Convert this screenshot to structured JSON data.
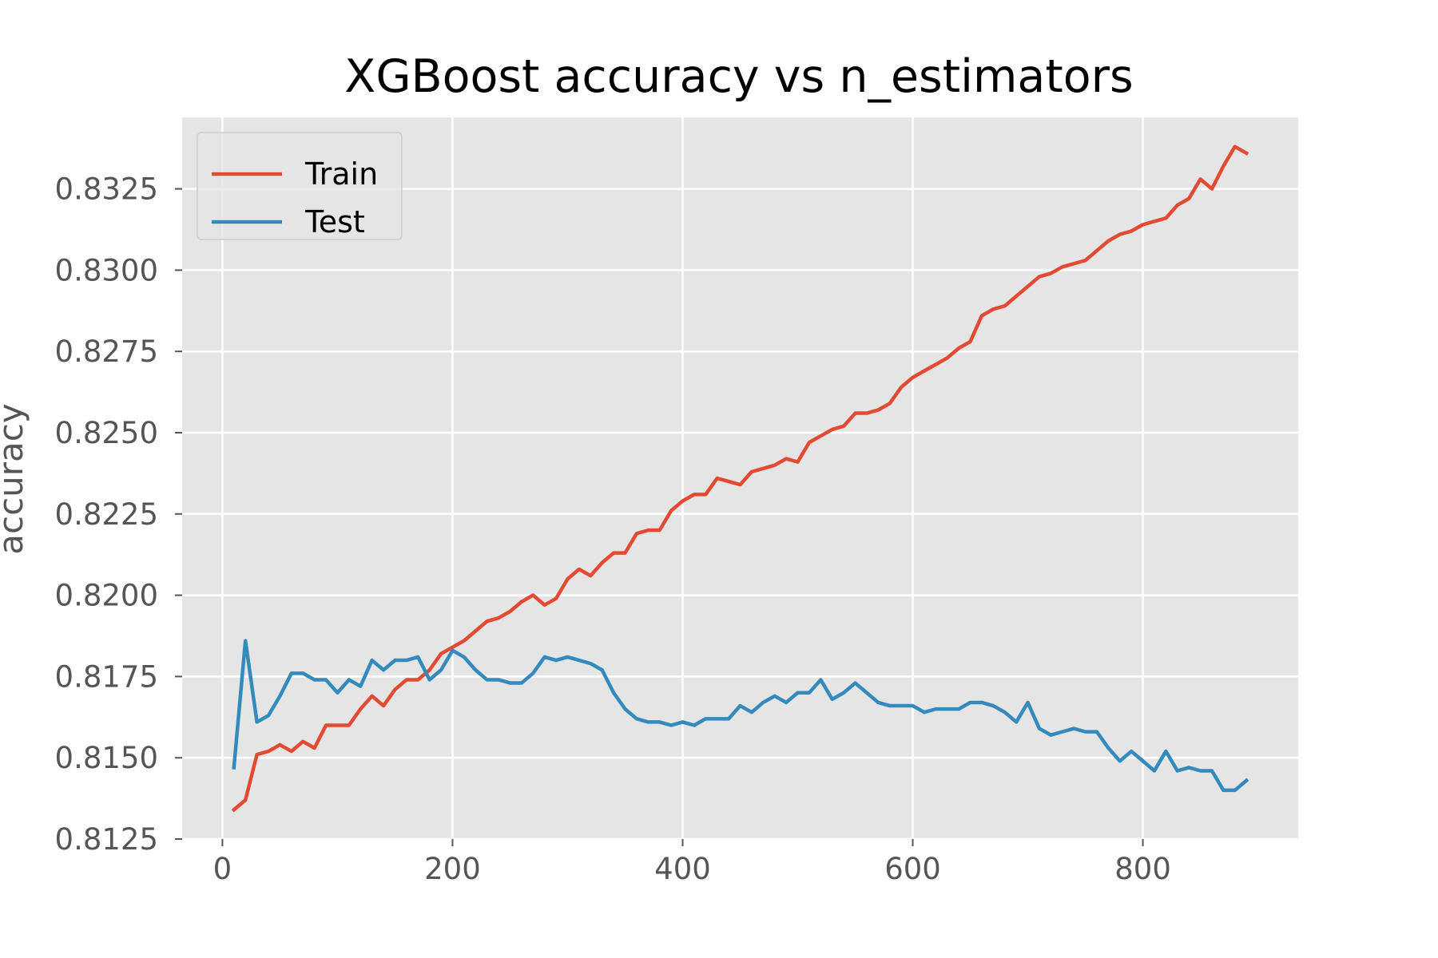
{
  "chart_data": {
    "type": "line",
    "title": "XGBoost accuracy vs n_estimators",
    "xlabel": "",
    "ylabel": "accuracy",
    "xlim": [
      -35,
      935
    ],
    "ylim": [
      0.8125,
      0.8347
    ],
    "x_ticks": [
      0,
      200,
      400,
      600,
      800
    ],
    "x_tick_labels": [
      "0",
      "200",
      "400",
      "600",
      "800"
    ],
    "y_ticks": [
      0.8125,
      0.815,
      0.8175,
      0.82,
      0.8225,
      0.825,
      0.8275,
      0.83,
      0.8325
    ],
    "y_tick_labels": [
      "0.8125",
      "0.8150",
      "0.8175",
      "0.8200",
      "0.8225",
      "0.8250",
      "0.8275",
      "0.8300",
      "0.8325"
    ],
    "grid": true,
    "legend_position": "top-left",
    "background_color": "#e5e5e5",
    "grid_color": "#ffffff",
    "x": [
      10,
      20,
      30,
      40,
      50,
      60,
      70,
      80,
      90,
      100,
      110,
      120,
      130,
      140,
      150,
      160,
      170,
      180,
      190,
      200,
      210,
      220,
      230,
      240,
      250,
      260,
      270,
      280,
      290,
      300,
      310,
      320,
      330,
      340,
      350,
      360,
      370,
      380,
      390,
      400,
      410,
      420,
      430,
      440,
      450,
      460,
      470,
      480,
      490,
      500,
      510,
      520,
      530,
      540,
      550,
      560,
      570,
      580,
      590,
      600,
      610,
      620,
      630,
      640,
      650,
      660,
      670,
      680,
      690,
      700,
      710,
      720,
      730,
      740,
      750,
      760,
      770,
      780,
      790,
      800,
      810,
      820,
      830,
      840,
      850,
      860,
      870,
      880,
      890
    ],
    "series": [
      {
        "name": "Train",
        "color": "#e24a33",
        "values": [
          0.8134,
          0.8137,
          0.8151,
          0.8152,
          0.8154,
          0.8152,
          0.8155,
          0.8153,
          0.816,
          0.816,
          0.816,
          0.8165,
          0.8169,
          0.8166,
          0.8171,
          0.8174,
          0.8174,
          0.8177,
          0.8182,
          0.8184,
          0.8186,
          0.8189,
          0.8192,
          0.8193,
          0.8195,
          0.8198,
          0.82,
          0.8197,
          0.8199,
          0.8205,
          0.8208,
          0.8206,
          0.821,
          0.8213,
          0.8213,
          0.8219,
          0.822,
          0.822,
          0.8226,
          0.8229,
          0.8231,
          0.8231,
          0.8236,
          0.8235,
          0.8234,
          0.8238,
          0.8239,
          0.824,
          0.8242,
          0.8241,
          0.8247,
          0.8249,
          0.8251,
          0.8252,
          0.8256,
          0.8256,
          0.8257,
          0.8259,
          0.8264,
          0.8267,
          0.8269,
          0.8271,
          0.8273,
          0.8276,
          0.8278,
          0.8286,
          0.8288,
          0.8289,
          0.8292,
          0.8295,
          0.8298,
          0.8299,
          0.8301,
          0.8302,
          0.8303,
          0.8306,
          0.8309,
          0.8311,
          0.8312,
          0.8314,
          0.8315,
          0.8316,
          0.832,
          0.8322,
          0.8328,
          0.8325,
          0.8332,
          0.8338,
          0.8336
        ]
      },
      {
        "name": "Test",
        "color": "#348abd",
        "values": [
          0.8147,
          0.8186,
          0.8161,
          0.8163,
          0.8169,
          0.8176,
          0.8176,
          0.8174,
          0.8174,
          0.817,
          0.8174,
          0.8172,
          0.818,
          0.8177,
          0.818,
          0.818,
          0.8181,
          0.8174,
          0.8177,
          0.8183,
          0.8181,
          0.8177,
          0.8174,
          0.8174,
          0.8173,
          0.8173,
          0.8176,
          0.8181,
          0.818,
          0.8181,
          0.818,
          0.8179,
          0.8177,
          0.817,
          0.8165,
          0.8162,
          0.8161,
          0.8161,
          0.816,
          0.8161,
          0.816,
          0.8162,
          0.8162,
          0.8162,
          0.8166,
          0.8164,
          0.8167,
          0.8169,
          0.8167,
          0.817,
          0.817,
          0.8174,
          0.8168,
          0.817,
          0.8173,
          0.817,
          0.8167,
          0.8166,
          0.8166,
          0.8166,
          0.8164,
          0.8165,
          0.8165,
          0.8165,
          0.8167,
          0.8167,
          0.8166,
          0.8164,
          0.8161,
          0.8167,
          0.8159,
          0.8157,
          0.8158,
          0.8159,
          0.8158,
          0.8158,
          0.8153,
          0.8149,
          0.8152,
          0.8149,
          0.8146,
          0.8152,
          0.8146,
          0.8147,
          0.8146,
          0.8146,
          0.814,
          0.814,
          0.8143
        ]
      }
    ]
  }
}
